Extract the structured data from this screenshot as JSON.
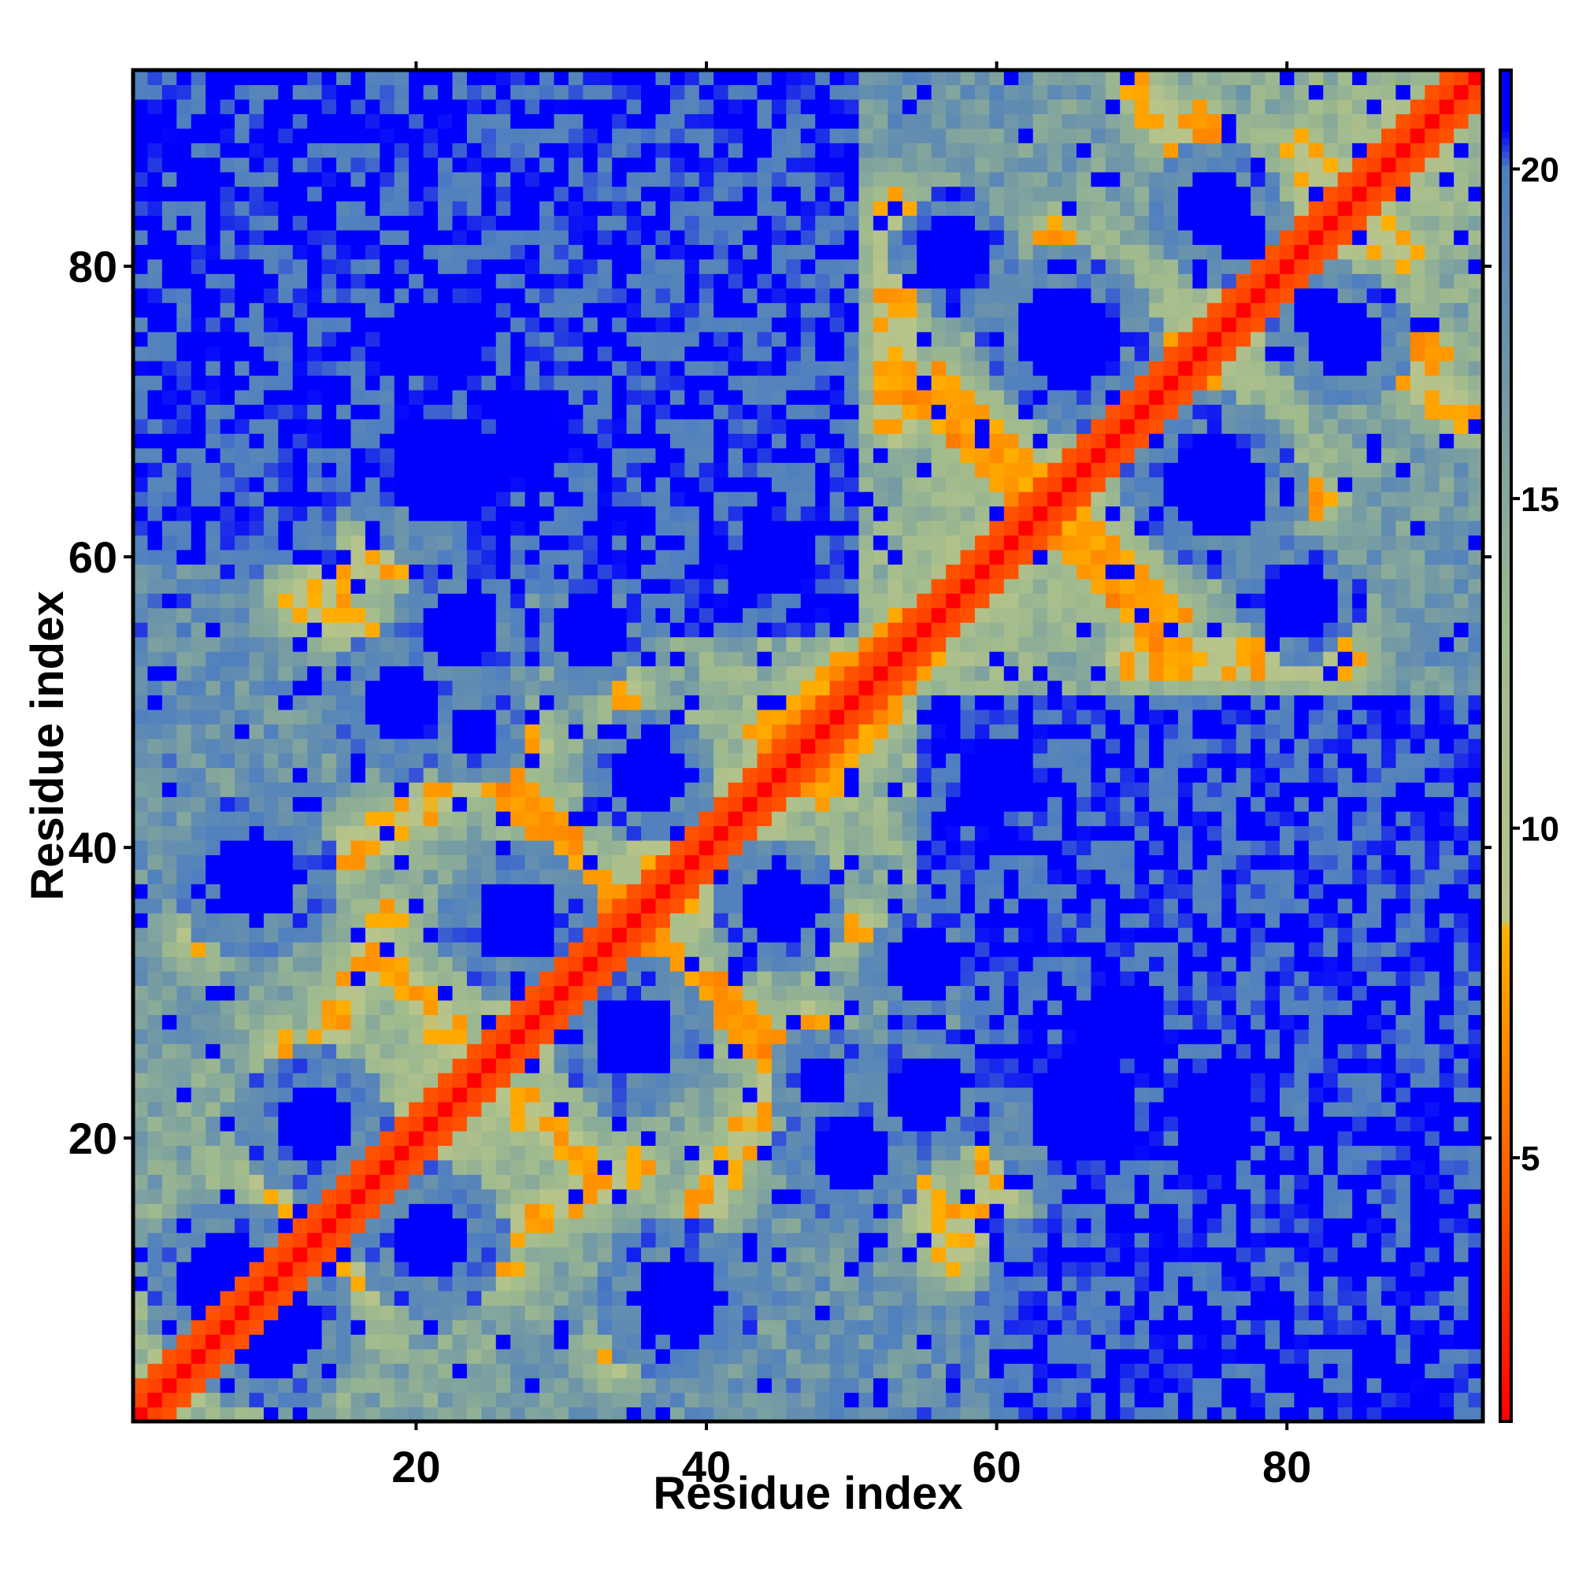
{
  "chart_data": {
    "type": "heatmap",
    "title": "",
    "xlabel": "Residue index",
    "ylabel": "Residue index",
    "n_residues": 93,
    "xlim": [
      1,
      93
    ],
    "ylim": [
      1,
      93
    ],
    "x_ticks": [
      {
        "value": 20,
        "label": "20"
      },
      {
        "value": 40,
        "label": "40"
      },
      {
        "value": 60,
        "label": "60"
      },
      {
        "value": 80,
        "label": "80"
      }
    ],
    "y_ticks": [
      {
        "value": 20,
        "label": "20"
      },
      {
        "value": 40,
        "label": "40"
      },
      {
        "value": 60,
        "label": "60"
      },
      {
        "value": 80,
        "label": "80"
      }
    ],
    "colorbar": {
      "range": [
        1,
        21.5
      ],
      "ticks": [
        {
          "value": 5,
          "label": "5"
        },
        {
          "value": 10,
          "label": "10"
        },
        {
          "value": 15,
          "label": "15"
        },
        {
          "value": 20,
          "label": "20"
        }
      ],
      "stops": [
        {
          "value": 1,
          "color": "#ff0000"
        },
        {
          "value": 4.5,
          "color": "#ff5a00"
        },
        {
          "value": 8.5,
          "color": "#ffb000"
        },
        {
          "value": 8.6,
          "color": "#b8c48a"
        },
        {
          "value": 13,
          "color": "#9fba8e"
        },
        {
          "value": 17,
          "color": "#6e96a8"
        },
        {
          "value": 20,
          "color": "#4f7fc0"
        },
        {
          "value": 20.6,
          "color": "#0000ff"
        },
        {
          "value": 21.5,
          "color": "#0000ff"
        }
      ],
      "saturated_color": "#0000ff"
    },
    "contact_segments": [
      [
        1,
        2,
        2,
        1,
        1
      ],
      [
        11,
        14,
        13,
        10,
        1
      ],
      [
        11,
        18,
        17,
        10,
        4
      ],
      [
        11,
        26,
        16,
        19,
        7
      ],
      [
        18,
        35,
        14,
        27,
        7
      ],
      [
        27,
        22,
        23,
        26,
        4
      ],
      [
        28,
        47,
        5,
        34,
        8
      ],
      [
        28,
        22,
        33,
        17,
        6
      ],
      [
        36,
        34,
        48,
        23,
        12
      ],
      [
        32,
        56,
        40,
        36,
        4
      ],
      [
        51,
        20,
        54,
        17,
        4
      ],
      [
        56,
        14,
        60,
        14,
        5
      ],
      [
        16,
        60,
        19,
        60,
        3
      ],
      [
        12,
        57,
        20,
        53,
        6
      ],
      [
        44,
        48,
        55,
        56,
        10
      ],
      [
        38,
        74,
        42,
        72,
        3
      ],
      [
        53,
        73,
        66,
        60,
        10
      ],
      [
        63,
        65,
        72,
        56,
        9
      ],
      [
        64,
        82,
        78,
        67,
        10
      ],
      [
        70,
        92,
        82,
        76,
        8
      ],
      [
        84,
        78,
        90,
        74,
        9
      ],
      [
        82,
        86,
        88,
        81,
        5
      ],
      [
        69,
        53,
        84,
        53,
        3
      ],
      [
        76,
        48,
        86,
        48,
        3
      ]
    ],
    "core_regions": [
      [
        10,
        7,
        2.3
      ],
      [
        21,
        13,
        2.0
      ],
      [
        35,
        27,
        2.1
      ],
      [
        50,
        19,
        2.0
      ],
      [
        24,
        48,
        1.4
      ],
      [
        9,
        38,
        2.2
      ],
      [
        45,
        36,
        1.8
      ],
      [
        55,
        23,
        1.8
      ],
      [
        66,
        22,
        2.6
      ],
      [
        75,
        22,
        2.2
      ],
      [
        65,
        75,
        2.4
      ],
      [
        76,
        64,
        2.0
      ],
      [
        84,
        75,
        1.9
      ],
      [
        28,
        68,
        2.0
      ],
      [
        45,
        60,
        1.8
      ],
      [
        20,
        75,
        1.6
      ],
      [
        57,
        81,
        1.6
      ],
      [
        77,
        82,
        1.4
      ],
      [
        32,
        55,
        1.6
      ]
    ],
    "far_regions": [
      [
        1,
        60,
        14,
        93
      ],
      [
        14,
        85,
        40,
        93
      ],
      [
        24,
        58,
        36,
        93
      ],
      [
        36,
        55,
        50,
        93
      ],
      [
        64,
        1,
        93,
        23
      ],
      [
        70,
        1,
        93,
        42
      ],
      [
        84,
        1,
        93,
        50
      ],
      [
        1,
        1,
        1,
        1
      ]
    ]
  }
}
